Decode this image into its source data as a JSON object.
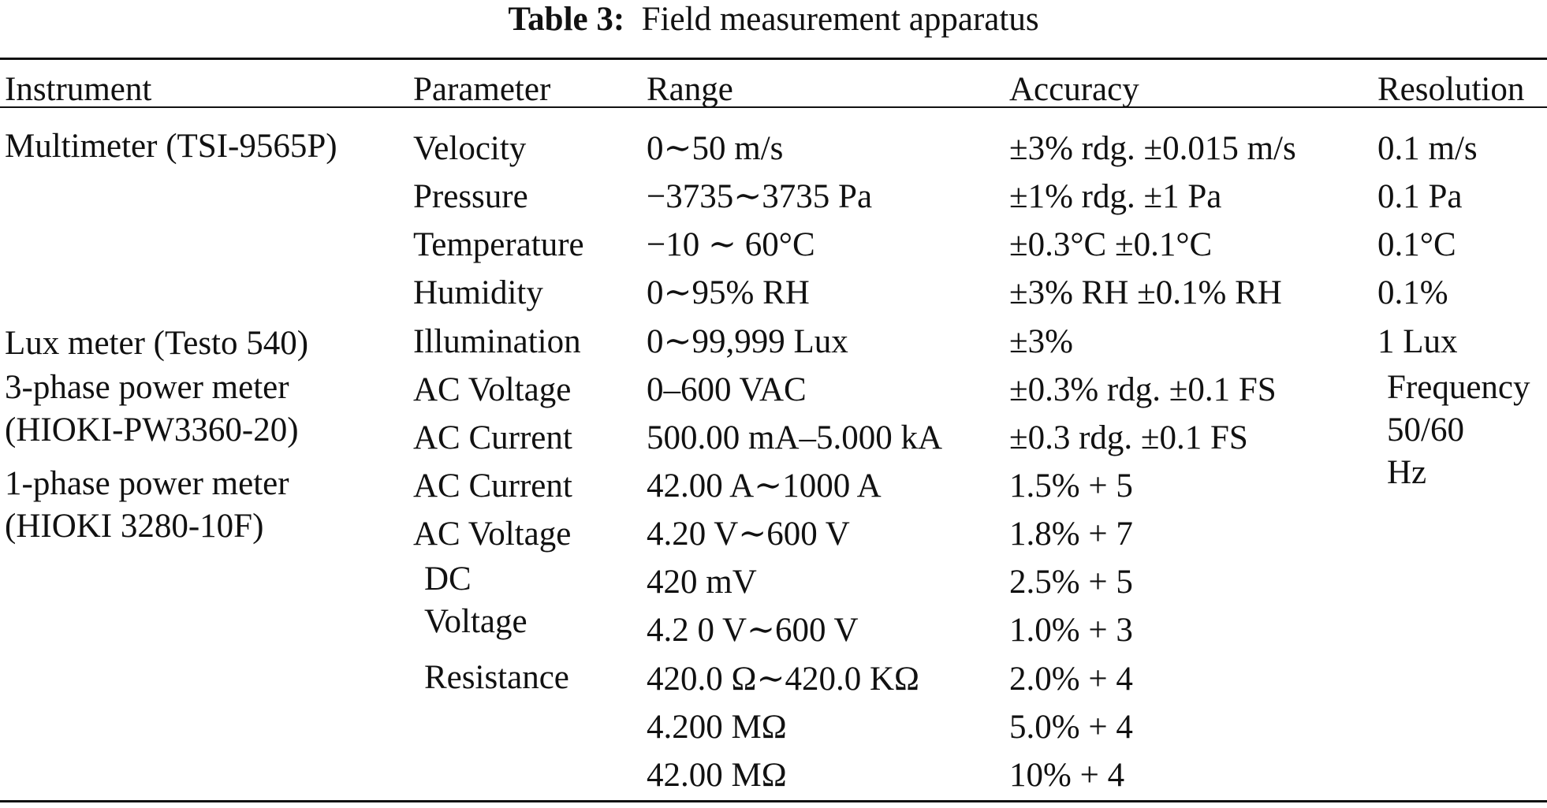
{
  "caption": {
    "label": "Table 3:",
    "title": "Field measurement apparatus"
  },
  "table": {
    "headers": [
      "Instrument",
      "Parameter",
      "Range",
      "Accuracy",
      "Resolution"
    ],
    "instruments": [
      {
        "lines": [
          "Multimeter (TSI-9565P)"
        ]
      },
      {
        "lines": [
          "Lux meter (Testo 540)"
        ]
      },
      {
        "lines": [
          "3-phase power meter",
          "(HIOKI-PW3360-20)"
        ]
      },
      {
        "lines": [
          "1-phase power meter",
          "(HIOKI 3280-10F)"
        ]
      }
    ],
    "parameters": [
      "Velocity",
      "Pressure",
      "Temperature",
      "Humidity",
      "Illumination",
      "AC Voltage",
      "AC Current",
      "AC Current",
      "AC Voltage",
      "DC",
      "Voltage",
      "Resistance"
    ],
    "ranges": [
      "0∼50 m/s",
      "−3735∼3735 Pa",
      "−10 ∼ 60°C",
      "0∼95% RH",
      "0∼99,999 Lux",
      "0–600 VAC",
      "500.00 mA–5.000 kA",
      "42.00 A∼1000 A",
      "4.20 V∼600 V",
      "420 mV",
      "4.2 0 V∼600 V",
      "420.0 Ω∼420.0 KΩ",
      "4.200 MΩ",
      "42.00 MΩ"
    ],
    "accuracies": [
      "±3% rdg. ±0.015 m/s",
      "±1% rdg. ±1 Pa",
      "±0.3°C ±0.1°C",
      "±3% RH ±0.1% RH",
      "±3%",
      "±0.3% rdg. ±0.1 FS",
      "±0.3 rdg. ±0.1 FS",
      "1.5% + 5",
      "1.8% + 7",
      "2.5% + 5",
      "1.0% + 3",
      "2.0% + 4",
      "5.0% + 4",
      "10% + 4"
    ],
    "resolutions": [
      "0.1 m/s",
      "0.1 Pa",
      "0.1°C",
      "0.1%",
      "1 Lux",
      "Frequency",
      "50/60",
      "Hz"
    ]
  }
}
